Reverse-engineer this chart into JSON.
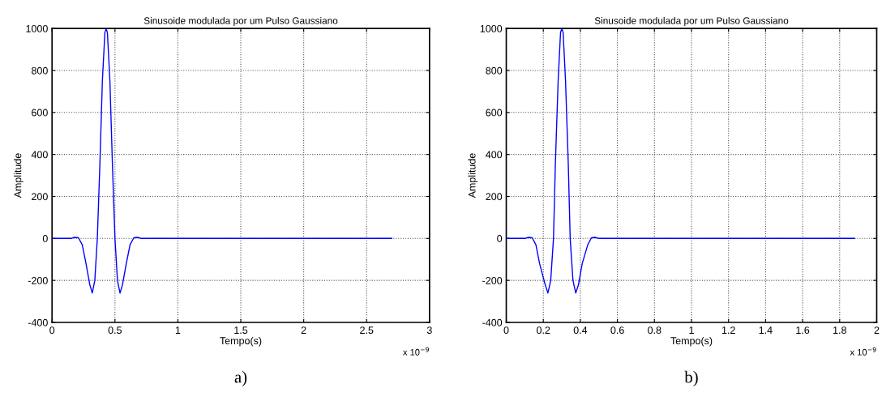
{
  "chart_data": [
    {
      "type": "line",
      "title": "Sinusoide modulada por um Pulso Gaussiano",
      "xlabel": "Tempo(s)",
      "ylabel": "Amplitude",
      "x": [
        0,
        0.15,
        0.18,
        0.21,
        0.24,
        0.27,
        0.3,
        0.32,
        0.34,
        0.36,
        0.38,
        0.4,
        0.42,
        0.43,
        0.44,
        0.46,
        0.48,
        0.5,
        0.52,
        0.54,
        0.56,
        0.59,
        0.62,
        0.65,
        0.68,
        0.71,
        2.7
      ],
      "series": [
        {
          "color": "#0000ff",
          "values": [
            0,
            0,
            5,
            3,
            -30,
            -120,
            -220,
            -260,
            -200,
            0,
            350,
            750,
            980,
            1000,
            980,
            750,
            350,
            0,
            -200,
            -260,
            -220,
            -120,
            -30,
            3,
            5,
            0,
            0
          ]
        }
      ],
      "xlim": [
        0,
        3
      ],
      "xticks": [
        0,
        0.5,
        1,
        1.5,
        2,
        2.5,
        3
      ],
      "ylim": [
        -400,
        1000
      ],
      "yticks": [
        -400,
        -200,
        0,
        200,
        400,
        600,
        800,
        1000
      ],
      "grid": true,
      "marker": "none",
      "line_style": "solid",
      "annotations": [
        "x 10$^{−9}$",
        "a)"
      ]
    },
    {
      "type": "line",
      "title": "Sinusoide modulada por um Pulso Gaussiano",
      "xlabel": "Tempo(s)",
      "ylabel": "Amplitude",
      "x": [
        0,
        0.1,
        0.12,
        0.14,
        0.16,
        0.18,
        0.21,
        0.225,
        0.24,
        0.255,
        0.265,
        0.28,
        0.293,
        0.3,
        0.307,
        0.32,
        0.335,
        0.345,
        0.36,
        0.375,
        0.39,
        0.41,
        0.44,
        0.46,
        0.48,
        0.5,
        1.88
      ],
      "series": [
        {
          "color": "#0000ff",
          "values": [
            0,
            0,
            5,
            3,
            -30,
            -120,
            -220,
            -260,
            -200,
            0,
            350,
            750,
            980,
            1000,
            980,
            750,
            350,
            0,
            -200,
            -260,
            -220,
            -120,
            -30,
            3,
            5,
            0,
            0
          ]
        }
      ],
      "xlim": [
        0,
        2
      ],
      "xticks": [
        0,
        0.2,
        0.4,
        0.6,
        0.8,
        1,
        1.2,
        1.4,
        1.6,
        1.8,
        2
      ],
      "ylim": [
        -400,
        1000
      ],
      "yticks": [
        -400,
        -200,
        0,
        200,
        400,
        600,
        800,
        1000
      ],
      "grid": true,
      "marker": "none",
      "line_style": "solid",
      "annotations": [
        "x 10$^{−9}$",
        "b)"
      ]
    }
  ]
}
